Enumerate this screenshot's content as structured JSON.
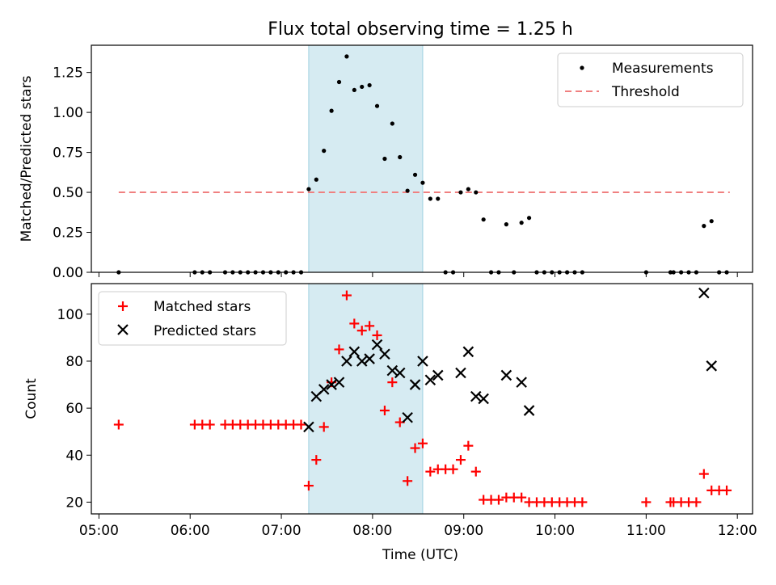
{
  "figure_title": "Flux total observing time = 1.25 h",
  "chart_data": [
    {
      "type": "scatter",
      "title": "Flux total observing time = 1.25 h",
      "xlabel": "",
      "ylabel": "Matched/Predicted stars",
      "xlim": [
        "04:55",
        "12:10"
      ],
      "ylim": [
        0,
        1.42
      ],
      "yticks": [
        "0.00",
        "0.25",
        "0.50",
        "0.75",
        "1.00",
        "1.25"
      ],
      "shaded_interval": [
        "07:18",
        "08:33"
      ],
      "legend_position": "top-right",
      "threshold": {
        "name": "Threshold",
        "value": 0.5,
        "x_range": [
          "05:13",
          "11:55"
        ],
        "color": "#f08080"
      },
      "series": [
        {
          "name": "Measurements",
          "color": "#000000",
          "marker": "dot",
          "points": [
            [
              "05:13",
              0.0
            ],
            [
              "06:03",
              0.0
            ],
            [
              "06:08",
              0.0
            ],
            [
              "06:13",
              0.0
            ],
            [
              "06:23",
              0.0
            ],
            [
              "06:28",
              0.0
            ],
            [
              "06:33",
              0.0
            ],
            [
              "06:38",
              0.0
            ],
            [
              "06:43",
              0.0
            ],
            [
              "06:48",
              0.0
            ],
            [
              "06:53",
              0.0
            ],
            [
              "06:58",
              0.0
            ],
            [
              "07:03",
              0.0
            ],
            [
              "07:08",
              0.0
            ],
            [
              "07:13",
              0.0
            ],
            [
              "07:18",
              0.52
            ],
            [
              "07:23",
              0.58
            ],
            [
              "07:28",
              0.76
            ],
            [
              "07:33",
              1.01
            ],
            [
              "07:38",
              1.19
            ],
            [
              "07:43",
              1.35
            ],
            [
              "07:48",
              1.14
            ],
            [
              "07:53",
              1.16
            ],
            [
              "07:58",
              1.17
            ],
            [
              "08:03",
              1.04
            ],
            [
              "08:08",
              0.71
            ],
            [
              "08:13",
              0.93
            ],
            [
              "08:18",
              0.72
            ],
            [
              "08:23",
              0.51
            ],
            [
              "08:28",
              0.61
            ],
            [
              "08:33",
              0.56
            ],
            [
              "08:38",
              0.46
            ],
            [
              "08:43",
              0.46
            ],
            [
              "08:48",
              0.0
            ],
            [
              "08:53",
              0.0
            ],
            [
              "08:58",
              0.5
            ],
            [
              "09:03",
              0.52
            ],
            [
              "09:08",
              0.5
            ],
            [
              "09:13",
              0.33
            ],
            [
              "09:18",
              0.0
            ],
            [
              "09:23",
              0.0
            ],
            [
              "09:28",
              0.3
            ],
            [
              "09:33",
              0.0
            ],
            [
              "09:38",
              0.31
            ],
            [
              "09:43",
              0.34
            ],
            [
              "09:48",
              0.0
            ],
            [
              "09:53",
              0.0
            ],
            [
              "09:58",
              0.0
            ],
            [
              "10:03",
              0.0
            ],
            [
              "10:08",
              0.0
            ],
            [
              "10:13",
              0.0
            ],
            [
              "10:18",
              0.0
            ],
            [
              "11:00",
              0.0
            ],
            [
              "11:16",
              0.0
            ],
            [
              "11:18",
              0.0
            ],
            [
              "11:23",
              0.0
            ],
            [
              "11:28",
              0.0
            ],
            [
              "11:33",
              0.0
            ],
            [
              "11:38",
              0.29
            ],
            [
              "11:43",
              0.32
            ],
            [
              "11:48",
              0.0
            ],
            [
              "11:53",
              0.0
            ]
          ]
        }
      ]
    },
    {
      "type": "scatter",
      "title": "",
      "xlabel": "Time (UTC)",
      "ylabel": "Count",
      "xlim": [
        "04:55",
        "12:10"
      ],
      "ylim": [
        15,
        113
      ],
      "yticks": [
        "20",
        "40",
        "60",
        "80",
        "100"
      ],
      "xticks": [
        "05:00",
        "06:00",
        "07:00",
        "08:00",
        "09:00",
        "10:00",
        "11:00",
        "12:00"
      ],
      "shaded_interval": [
        "07:18",
        "08:33"
      ],
      "legend_position": "top-left",
      "series": [
        {
          "name": "Matched stars",
          "color": "#ff0000",
          "marker": "plus",
          "points": [
            [
              "05:13",
              53
            ],
            [
              "06:03",
              53
            ],
            [
              "06:08",
              53
            ],
            [
              "06:13",
              53
            ],
            [
              "06:23",
              53
            ],
            [
              "06:28",
              53
            ],
            [
              "06:33",
              53
            ],
            [
              "06:38",
              53
            ],
            [
              "06:43",
              53
            ],
            [
              "06:48",
              53
            ],
            [
              "06:53",
              53
            ],
            [
              "06:58",
              53
            ],
            [
              "07:03",
              53
            ],
            [
              "07:08",
              53
            ],
            [
              "07:13",
              53
            ],
            [
              "07:18",
              27
            ],
            [
              "07:23",
              38
            ],
            [
              "07:28",
              52
            ],
            [
              "07:33",
              71
            ],
            [
              "07:38",
              85
            ],
            [
              "07:43",
              108
            ],
            [
              "07:48",
              96
            ],
            [
              "07:53",
              93
            ],
            [
              "07:58",
              95
            ],
            [
              "08:03",
              91
            ],
            [
              "08:08",
              59
            ],
            [
              "08:13",
              71
            ],
            [
              "08:18",
              54
            ],
            [
              "08:23",
              29
            ],
            [
              "08:28",
              43
            ],
            [
              "08:33",
              45
            ],
            [
              "08:38",
              33
            ],
            [
              "08:43",
              34
            ],
            [
              "08:48",
              34
            ],
            [
              "08:53",
              34
            ],
            [
              "08:58",
              38
            ],
            [
              "09:03",
              44
            ],
            [
              "09:08",
              33
            ],
            [
              "09:13",
              21
            ],
            [
              "09:18",
              21
            ],
            [
              "09:23",
              21
            ],
            [
              "09:28",
              22
            ],
            [
              "09:33",
              22
            ],
            [
              "09:38",
              22
            ],
            [
              "09:43",
              20
            ],
            [
              "09:48",
              20
            ],
            [
              "09:53",
              20
            ],
            [
              "09:58",
              20
            ],
            [
              "10:03",
              20
            ],
            [
              "10:08",
              20
            ],
            [
              "10:13",
              20
            ],
            [
              "10:18",
              20
            ],
            [
              "11:00",
              20
            ],
            [
              "11:16",
              20
            ],
            [
              "11:18",
              20
            ],
            [
              "11:23",
              20
            ],
            [
              "11:28",
              20
            ],
            [
              "11:33",
              20
            ],
            [
              "11:38",
              32
            ],
            [
              "11:43",
              25
            ],
            [
              "11:48",
              25
            ],
            [
              "11:53",
              25
            ]
          ]
        },
        {
          "name": "Predicted stars",
          "color": "#000000",
          "marker": "x",
          "points": [
            [
              "07:18",
              52
            ],
            [
              "07:23",
              65
            ],
            [
              "07:28",
              68
            ],
            [
              "07:33",
              70
            ],
            [
              "07:38",
              71
            ],
            [
              "07:43",
              80
            ],
            [
              "07:48",
              84
            ],
            [
              "07:53",
              80
            ],
            [
              "07:58",
              81
            ],
            [
              "08:03",
              87
            ],
            [
              "08:08",
              83
            ],
            [
              "08:13",
              76
            ],
            [
              "08:18",
              75
            ],
            [
              "08:23",
              56
            ],
            [
              "08:28",
              70
            ],
            [
              "08:33",
              80
            ],
            [
              "08:38",
              72
            ],
            [
              "08:43",
              74
            ],
            [
              "08:58",
              75
            ],
            [
              "09:03",
              84
            ],
            [
              "09:08",
              65
            ],
            [
              "09:13",
              64
            ],
            [
              "09:28",
              74
            ],
            [
              "09:38",
              71
            ],
            [
              "09:43",
              59
            ],
            [
              "11:38",
              109
            ],
            [
              "11:43",
              78
            ]
          ]
        }
      ]
    }
  ]
}
